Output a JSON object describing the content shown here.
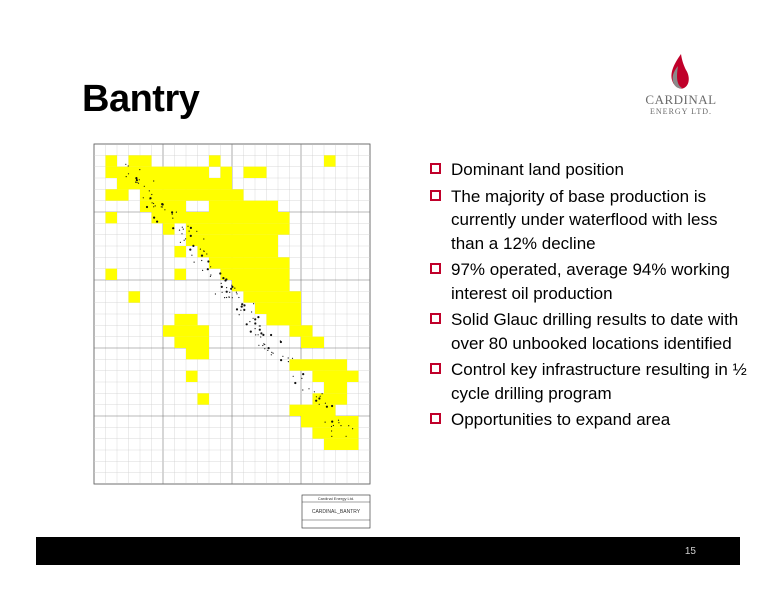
{
  "slide": {
    "title": "Bantry",
    "page_number": "15"
  },
  "logo": {
    "name_line1": "CARDINAL",
    "name_line2": "ENERGY LTD."
  },
  "map": {
    "title_block_line1": "Cardinal Energy Ltd.",
    "title_block_line2": "CARDINAL_BANTRY"
  },
  "bullets": [
    "Dominant land position",
    "The majority of base production is currently under waterflood with less than a 12% decline",
    "97% operated, average 94% working interest oil production",
    "Solid Glauc drilling results to date with over 80 unbooked locations identified",
    "Control key infrastructure resulting in ½ cycle drilling program",
    "Opportunities to expand area"
  ],
  "colors": {
    "accent": "#c0002a",
    "land_highlight": "#ffff00",
    "footer_bar": "#000000"
  }
}
